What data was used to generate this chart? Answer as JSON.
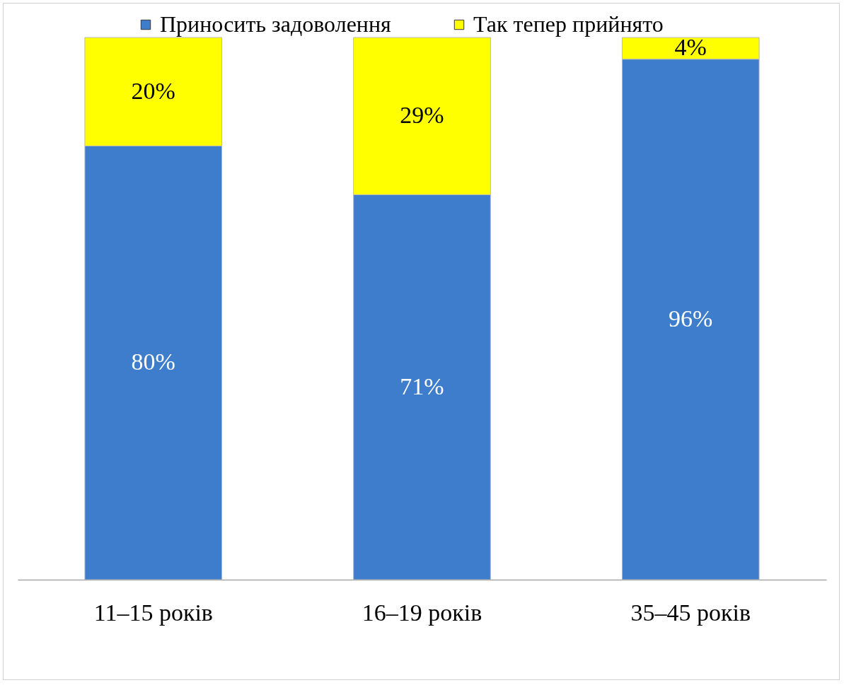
{
  "chart_data": {
    "type": "bar",
    "stacked": true,
    "categories": [
      "11–15 років",
      "16–19 років",
      "35–45 років"
    ],
    "series": [
      {
        "name": "Приносить задоволення",
        "color": "#3d7dcc",
        "values": [
          80,
          71,
          96
        ],
        "value_labels": [
          "80%",
          "71%",
          "96%"
        ]
      },
      {
        "name": "Так тепер прийнято",
        "color": "#ffff00",
        "values": [
          20,
          29,
          4
        ],
        "value_labels": [
          "20%",
          "29%",
          "4%"
        ]
      }
    ],
    "legend": "top"
  }
}
